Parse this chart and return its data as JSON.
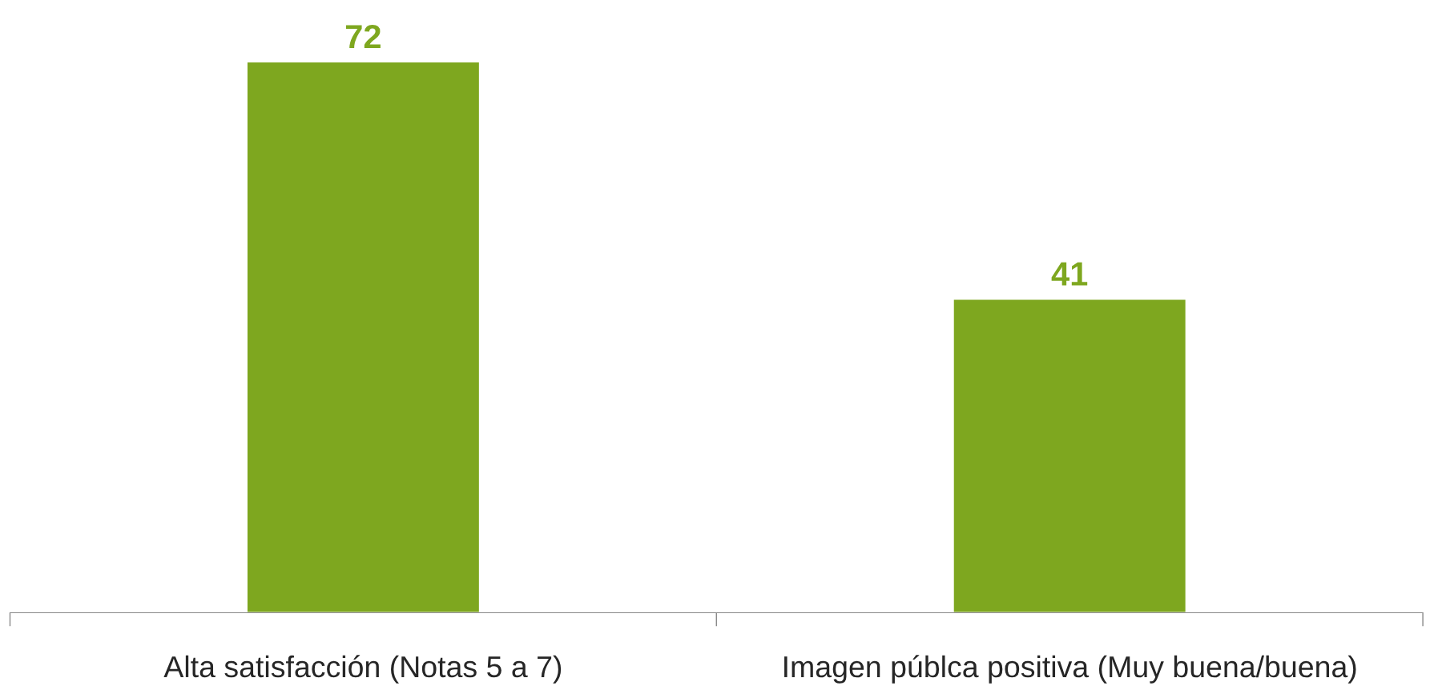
{
  "chart_data": {
    "type": "bar",
    "categories": [
      "Alta satisfacción (Notas 5 a 7)",
      "Imagen públca positiva (Muy buena/buena)"
    ],
    "values": [
      72,
      41
    ],
    "color": "#7ea71f",
    "data_labels": true,
    "grid": false,
    "legend": false
  }
}
